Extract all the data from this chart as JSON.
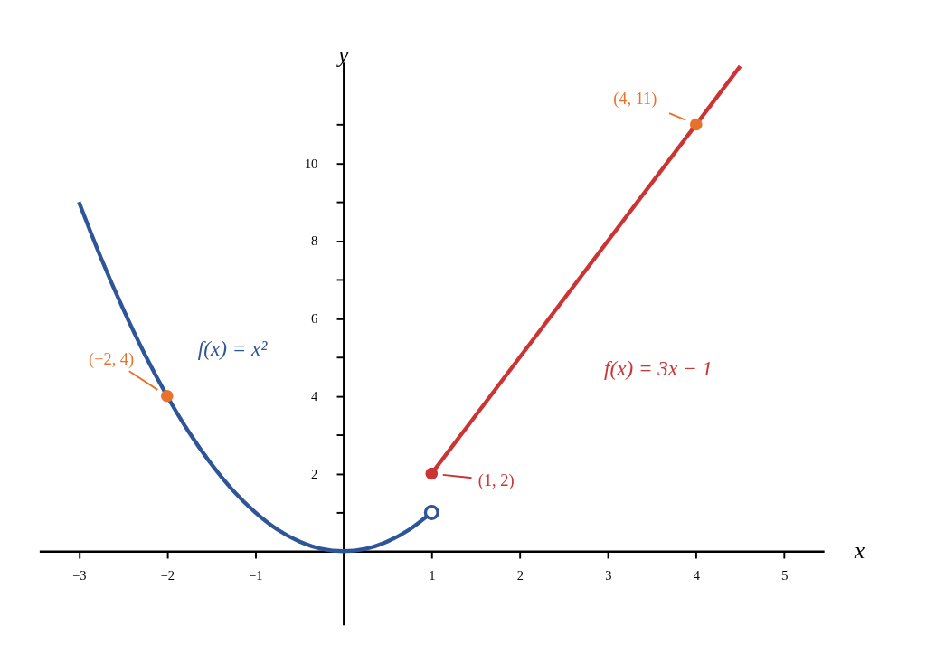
{
  "chart_data": {
    "type": "line",
    "xlabel": "x",
    "ylabel": "y",
    "xlim": [
      -3.45,
      5.45
    ],
    "ylim": [
      -1.9,
      12.6
    ],
    "xticks": [
      -3,
      -2,
      -1,
      1,
      2,
      3,
      4,
      5
    ],
    "yticks": [
      {
        "value": 1,
        "label": null
      },
      2,
      {
        "value": 3,
        "label": null
      },
      4,
      {
        "value": 5,
        "label": null
      },
      6,
      {
        "value": 7,
        "label": null
      },
      8,
      {
        "value": 9,
        "label": null
      },
      10,
      {
        "value": 11,
        "label": null
      }
    ],
    "grid": false,
    "line_style": "solid",
    "series": [
      {
        "name": "f(x) = x²",
        "color": "#2e5597",
        "x": [
          -3,
          -2.75,
          -2.5,
          -2.25,
          -2,
          -1.75,
          -1.5,
          -1.25,
          -1,
          -0.75,
          -0.5,
          -0.25,
          0,
          0.25,
          0.5,
          0.75,
          1
        ],
        "values": [
          9,
          7.56,
          6.25,
          5.06,
          4,
          3.06,
          2.25,
          1.56,
          1,
          0.56,
          0.25,
          0.06,
          0,
          0.06,
          0.25,
          0.56,
          1
        ]
      },
      {
        "name": "f(x) = 3x − 1",
        "color": "#cc3333",
        "x": [
          1,
          4.5
        ],
        "values": [
          2,
          12.5
        ]
      },
      {
        "type": "scatter",
        "marker": "circle",
        "color": "#e8722c",
        "x": [
          -2,
          4
        ],
        "values": [
          4,
          11
        ]
      },
      {
        "type": "scatter",
        "marker": "circle",
        "color": "#cc3333",
        "x": [
          1
        ],
        "values": [
          2
        ]
      },
      {
        "type": "scatter",
        "marker": "circle",
        "color": "#2e5597",
        "x": [
          1
        ],
        "values": [
          1
        ]
      }
    ],
    "annotations": [
      {
        "text": "(−2, 4)",
        "x": -2,
        "y": 4
      },
      {
        "text": "(4, 11)",
        "x": 4,
        "y": 11
      },
      {
        "text": "(1, 2)",
        "x": 1,
        "y": 2
      }
    ]
  }
}
